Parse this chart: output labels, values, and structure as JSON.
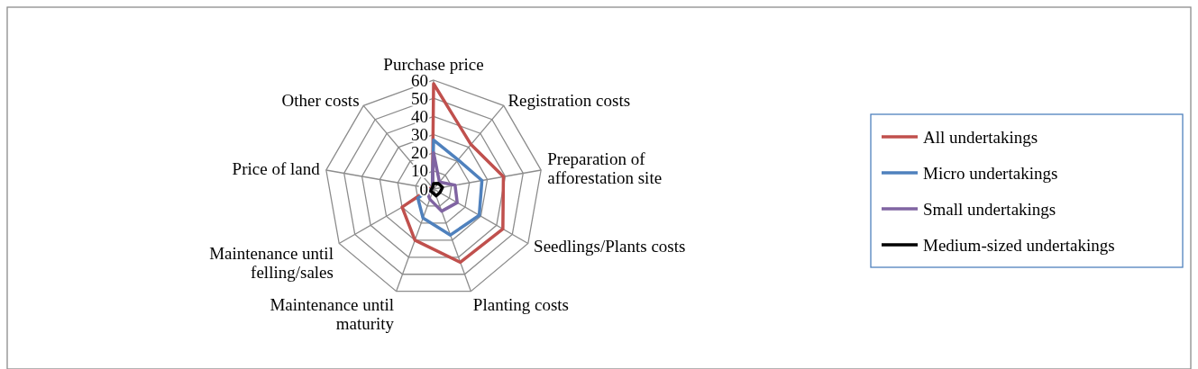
{
  "chart_data": {
    "type": "radar",
    "categories": [
      "Purchase price",
      "Registration costs",
      "Preparation of afforestation site",
      "Seedlings/Plants costs",
      "Planting costs",
      "Maintenance until maturity",
      "Maintenance until felling/sales",
      "Price of land",
      "Other costs"
    ],
    "series": [
      {
        "name": "All undertakings",
        "color": "#c0504d",
        "values": [
          58,
          32,
          39,
          44,
          43,
          30,
          20,
          2,
          1
        ]
      },
      {
        "name": "Micro undertakings",
        "color": "#4f81bd",
        "values": [
          27,
          21,
          27,
          29,
          27,
          17,
          10,
          1,
          1
        ]
      },
      {
        "name": "Small undertakings",
        "color": "#8064a2",
        "values": [
          20,
          5,
          12,
          15,
          13,
          6,
          4,
          1,
          1
        ]
      },
      {
        "name": "Medium-sized undertakings",
        "color": "#000000",
        "values": [
          3,
          4,
          5,
          4,
          4,
          2,
          2,
          1,
          1
        ]
      }
    ],
    "ylim": [
      0,
      60
    ],
    "yticks": [
      0,
      10,
      20,
      30,
      40,
      50,
      60
    ],
    "grid": true,
    "legend": "right"
  }
}
